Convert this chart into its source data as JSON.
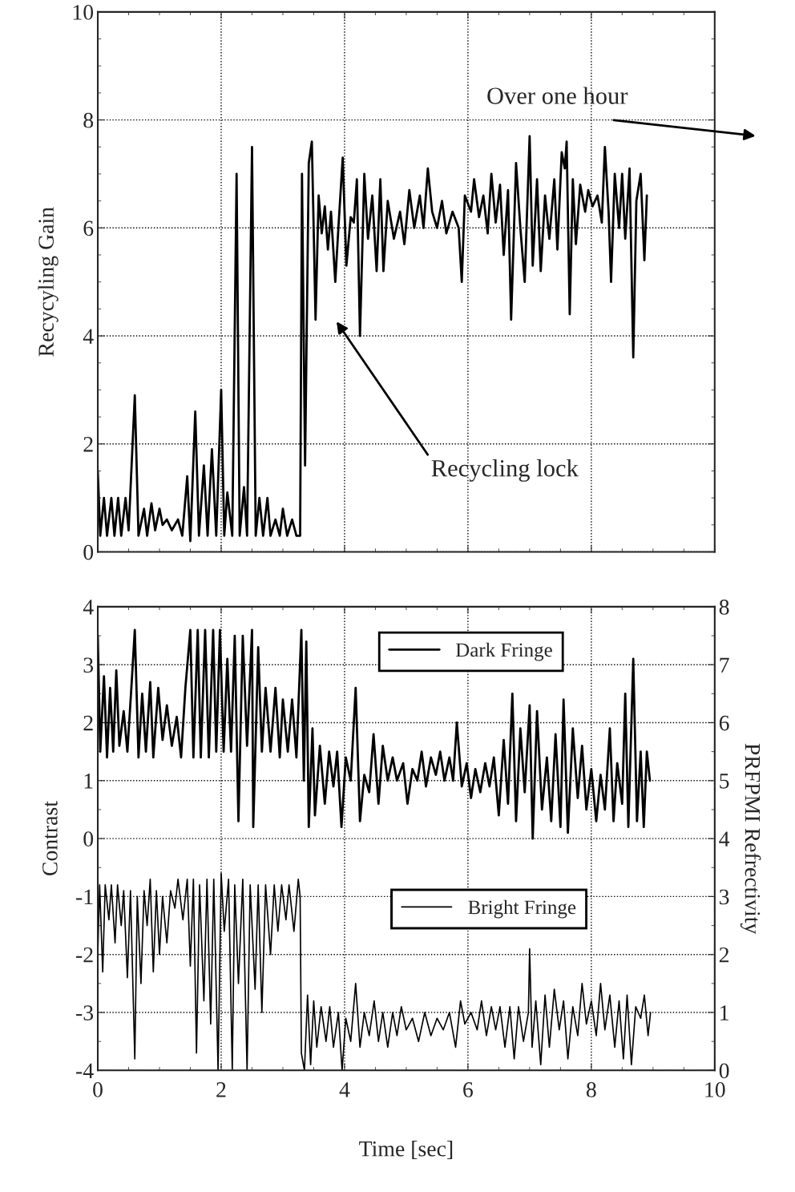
{
  "chart_data": [
    {
      "type": "line",
      "ylabel": "Recycyling Gain",
      "xlim": [
        0,
        10
      ],
      "xticks": [
        0,
        2,
        4,
        6,
        8,
        10
      ],
      "ylim": [
        0,
        10
      ],
      "yticks": [
        0,
        2,
        4,
        6,
        8,
        10
      ],
      "grid": true,
      "tick_labels": "y",
      "annotations": [
        "Over one hour",
        "Recycling lock"
      ],
      "series": [
        {
          "color": "#000000",
          "x": [
            0,
            0.04,
            0.1,
            0.15,
            0.22,
            0.27,
            0.33,
            0.38,
            0.45,
            0.5,
            0.6,
            0.66,
            0.75,
            0.8,
            0.87,
            0.93,
            1.0,
            1.05,
            1.12,
            1.2,
            1.3,
            1.37,
            1.45,
            1.5,
            1.58,
            1.64,
            1.72,
            1.78,
            1.85,
            1.92,
            2.0,
            2.05,
            2.1,
            2.18,
            2.25,
            2.3,
            2.37,
            2.42,
            2.5,
            2.56,
            2.62,
            2.68,
            2.75,
            2.8,
            2.88,
            2.95,
            3.0,
            3.07,
            3.15,
            3.22,
            3.28,
            3.31,
            3.36,
            3.42,
            3.47,
            3.53,
            3.58,
            3.63,
            3.68,
            3.73,
            3.78,
            3.85,
            3.9,
            3.97,
            4.03,
            4.1,
            4.15,
            4.2,
            4.25,
            4.32,
            4.38,
            4.45,
            4.52,
            4.58,
            4.63,
            4.7,
            4.8,
            4.9,
            4.97,
            5.05,
            5.13,
            5.22,
            5.28,
            5.35,
            5.42,
            5.5,
            5.58,
            5.65,
            5.75,
            5.85,
            5.9,
            5.95,
            6.05,
            6.1,
            6.18,
            6.25,
            6.32,
            6.38,
            6.45,
            6.52,
            6.58,
            6.65,
            6.7,
            6.78,
            6.85,
            6.92,
            7.0,
            7.05,
            7.12,
            7.18,
            7.25,
            7.32,
            7.4,
            7.45,
            7.52,
            7.57,
            7.6,
            7.65,
            7.7,
            7.75,
            7.82,
            7.9,
            7.95,
            8.02,
            8.1,
            8.17,
            8.22,
            8.28,
            8.32,
            8.38,
            8.45,
            8.5,
            8.55,
            8.62,
            8.68,
            8.73,
            8.8,
            8.86,
            8.9
          ],
          "values": [
            1.5,
            0.3,
            1.0,
            0.3,
            1.0,
            0.3,
            1.0,
            0.3,
            1.0,
            0.4,
            2.9,
            0.3,
            0.8,
            0.3,
            0.9,
            0.4,
            0.8,
            0.5,
            0.6,
            0.4,
            0.6,
            0.3,
            1.4,
            0.2,
            2.6,
            0.3,
            1.6,
            0.3,
            1.9,
            0.3,
            3.0,
            0.3,
            1.1,
            0.3,
            7.0,
            0.3,
            1.2,
            0.3,
            7.5,
            0.3,
            1.0,
            0.3,
            1.0,
            0.3,
            0.6,
            0.3,
            0.8,
            0.3,
            0.6,
            0.3,
            0.3,
            7.0,
            1.6,
            7.2,
            7.6,
            4.3,
            6.6,
            5.9,
            6.4,
            5.6,
            6.3,
            5.0,
            6.0,
            7.3,
            5.3,
            6.2,
            6.1,
            6.9,
            4.0,
            7.0,
            5.8,
            6.6,
            5.2,
            6.9,
            5.2,
            6.5,
            5.8,
            6.3,
            5.7,
            6.7,
            6.0,
            6.6,
            6.0,
            7.1,
            6.3,
            6.0,
            6.5,
            5.9,
            6.3,
            6.0,
            5.0,
            6.6,
            6.3,
            6.9,
            6.2,
            6.6,
            5.9,
            7.0,
            6.1,
            6.8,
            5.5,
            6.7,
            4.3,
            7.2,
            6.0,
            5.0,
            7.7,
            5.3,
            6.9,
            5.2,
            6.6,
            5.8,
            6.9,
            5.6,
            7.4,
            7.1,
            7.6,
            4.4,
            6.9,
            5.7,
            6.8,
            6.3,
            6.7,
            6.4,
            6.6,
            6.1,
            7.5,
            6.3,
            5.0,
            7.0,
            6.0,
            7.0,
            5.8,
            7.1,
            3.6,
            6.5,
            7.0,
            5.4,
            6.6
          ]
        }
      ]
    },
    {
      "type": "line",
      "xlabel": "Time [sec]",
      "ylabel": "Contrast",
      "y2label": "PRFPMI Refrectivity",
      "xlim": [
        0,
        10
      ],
      "xticks": [
        0,
        2,
        4,
        6,
        8,
        10
      ],
      "ylim": [
        -4,
        4
      ],
      "yticks": [
        -4,
        -3,
        -2,
        -1,
        0,
        1,
        2,
        3,
        4
      ],
      "y2lim": [
        0,
        8
      ],
      "y2ticks": [
        0,
        1,
        2,
        3,
        4,
        5,
        6,
        7,
        8
      ],
      "grid": true,
      "legend": "right",
      "series": [
        {
          "name": "Dark Fringe",
          "color": "#000000",
          "x": [
            0,
            0.04,
            0.1,
            0.15,
            0.2,
            0.25,
            0.3,
            0.35,
            0.42,
            0.48,
            0.55,
            0.6,
            0.66,
            0.72,
            0.78,
            0.85,
            0.9,
            0.98,
            1.05,
            1.12,
            1.2,
            1.28,
            1.35,
            1.42,
            1.5,
            1.55,
            1.62,
            1.67,
            1.74,
            1.8,
            1.87,
            1.92,
            1.98,
            2.04,
            2.1,
            2.16,
            2.22,
            2.28,
            2.35,
            2.42,
            2.5,
            2.52,
            2.6,
            2.66,
            2.72,
            2.8,
            2.88,
            2.95,
            3.0,
            3.08,
            3.15,
            3.22,
            3.3,
            3.34,
            3.38,
            3.42,
            3.48,
            3.52,
            3.6,
            3.68,
            3.75,
            3.82,
            3.88,
            3.95,
            4.02,
            4.1,
            4.18,
            4.25,
            4.32,
            4.4,
            4.47,
            4.55,
            4.62,
            4.7,
            4.78,
            4.85,
            4.95,
            5.02,
            5.1,
            5.18,
            5.25,
            5.32,
            5.4,
            5.48,
            5.55,
            5.62,
            5.7,
            5.76,
            5.82,
            5.9,
            5.98,
            6.05,
            6.12,
            6.2,
            6.28,
            6.35,
            6.42,
            6.5,
            6.58,
            6.65,
            6.72,
            6.78,
            6.85,
            6.92,
            7.0,
            7.05,
            7.12,
            7.2,
            7.28,
            7.35,
            7.42,
            7.5,
            7.55,
            7.62,
            7.7,
            7.78,
            7.85,
            7.92,
            8.0,
            8.08,
            8.15,
            8.22,
            8.3,
            8.36,
            8.42,
            8.5,
            8.55,
            8.6,
            8.68,
            8.74,
            8.8,
            8.85,
            8.9,
            8.95
          ],
          "values": [
            3.5,
            1.5,
            2.8,
            1.4,
            2.6,
            1.5,
            2.9,
            1.6,
            2.2,
            1.5,
            2.7,
            3.6,
            1.4,
            2.5,
            1.5,
            2.7,
            1.4,
            2.6,
            1.7,
            2.3,
            1.6,
            2.1,
            1.4,
            2.6,
            3.6,
            1.4,
            3.6,
            1.4,
            3.6,
            1.4,
            3.6,
            1.5,
            3.6,
            1.5,
            3.1,
            1.5,
            3.5,
            0.3,
            3.5,
            1.6,
            3.6,
            0.2,
            3.3,
            1.5,
            2.6,
            1.5,
            2.6,
            1.4,
            2.4,
            1.5,
            2.4,
            1.4,
            3.6,
            1.0,
            3.4,
            0.2,
            1.9,
            0.4,
            1.6,
            0.6,
            1.5,
            0.9,
            1.5,
            0.2,
            1.4,
            1.0,
            2.6,
            0.3,
            1.1,
            0.8,
            1.8,
            0.6,
            1.6,
            1.0,
            1.4,
            1.0,
            1.3,
            0.6,
            1.2,
            1.0,
            1.5,
            0.9,
            1.4,
            1.1,
            1.5,
            1.0,
            1.4,
            1.0,
            2.0,
            0.9,
            1.3,
            0.7,
            1.2,
            0.8,
            1.3,
            0.9,
            1.4,
            0.4,
            1.7,
            0.6,
            2.5,
            0.3,
            1.9,
            0.8,
            2.3,
            0.0,
            2.2,
            0.5,
            1.4,
            0.3,
            1.8,
            0.2,
            2.4,
            0.1,
            1.9,
            0.7,
            1.6,
            0.5,
            1.2,
            0.3,
            1.1,
            0.5,
            1.9,
            0.3,
            1.3,
            0.6,
            2.5,
            0.2,
            3.1,
            0.3,
            1.5,
            0.2,
            1.5,
            1.0
          ]
        },
        {
          "name": "Bright Fringe",
          "color": "#000000",
          "x": [
            0,
            0.03,
            0.08,
            0.12,
            0.18,
            0.22,
            0.28,
            0.32,
            0.38,
            0.42,
            0.48,
            0.53,
            0.6,
            0.64,
            0.7,
            0.75,
            0.8,
            0.85,
            0.9,
            0.95,
            1.0,
            1.05,
            1.12,
            1.18,
            1.25,
            1.3,
            1.38,
            1.45,
            1.5,
            1.55,
            1.6,
            1.65,
            1.72,
            1.77,
            1.83,
            1.88,
            1.95,
            2.0,
            2.05,
            2.12,
            2.18,
            2.22,
            2.28,
            2.35,
            2.42,
            2.47,
            2.55,
            2.6,
            2.66,
            2.72,
            2.8,
            2.86,
            2.92,
            2.98,
            3.05,
            3.1,
            3.18,
            3.25,
            3.28,
            3.3,
            3.35,
            3.4,
            3.45,
            3.5,
            3.55,
            3.62,
            3.7,
            3.76,
            3.82,
            3.9,
            3.96,
            4.02,
            4.1,
            4.18,
            4.25,
            4.32,
            4.4,
            4.48,
            4.55,
            4.62,
            4.7,
            4.78,
            4.85,
            4.92,
            5.0,
            5.1,
            5.2,
            5.3,
            5.4,
            5.5,
            5.6,
            5.7,
            5.8,
            5.88,
            5.95,
            6.05,
            6.15,
            6.22,
            6.3,
            6.38,
            6.45,
            6.52,
            6.6,
            6.68,
            6.75,
            6.82,
            6.9,
            6.98,
            7.0,
            7.04,
            7.1,
            7.18,
            7.25,
            7.32,
            7.4,
            7.48,
            7.55,
            7.62,
            7.7,
            7.78,
            7.85,
            7.92,
            8.0,
            8.08,
            8.15,
            8.22,
            8.3,
            8.38,
            8.45,
            8.52,
            8.58,
            8.65,
            8.72,
            8.8,
            8.86,
            8.92,
            8.96
          ],
          "values": [
            -2.0,
            -0.8,
            -2.3,
            -0.8,
            -1.4,
            -0.8,
            -1.8,
            -0.8,
            -1.5,
            -0.9,
            -2.4,
            -0.9,
            -3.8,
            -1.0,
            -2.5,
            -0.9,
            -1.5,
            -0.7,
            -2.3,
            -0.9,
            -2.0,
            -1.0,
            -1.8,
            -0.9,
            -1.2,
            -0.7,
            -1.4,
            -0.7,
            -2.2,
            -0.7,
            -3.7,
            -0.8,
            -2.8,
            -0.7,
            -3.2,
            -0.7,
            -4.0,
            -0.6,
            -1.6,
            -0.7,
            -4.0,
            -0.8,
            -2.5,
            -0.7,
            -4.0,
            -0.8,
            -2.6,
            -0.8,
            -3.0,
            -0.8,
            -2.0,
            -0.8,
            -1.6,
            -0.8,
            -1.4,
            -0.8,
            -1.6,
            -0.7,
            -1.0,
            -3.7,
            -4.0,
            -2.7,
            -3.9,
            -2.8,
            -3.6,
            -2.9,
            -3.5,
            -2.9,
            -3.6,
            -3.0,
            -4.0,
            -3.1,
            -3.5,
            -2.5,
            -3.6,
            -3.0,
            -3.4,
            -2.8,
            -3.5,
            -3.0,
            -3.6,
            -3.0,
            -3.4,
            -2.9,
            -3.3,
            -3.1,
            -3.5,
            -3.0,
            -3.4,
            -3.1,
            -3.3,
            -3.0,
            -3.6,
            -2.8,
            -3.2,
            -3.0,
            -3.3,
            -2.8,
            -3.4,
            -2.9,
            -3.3,
            -2.9,
            -3.6,
            -2.9,
            -3.8,
            -2.9,
            -3.5,
            -3.0,
            -1.9,
            -3.6,
            -2.8,
            -3.9,
            -2.7,
            -3.6,
            -2.6,
            -3.3,
            -2.8,
            -3.8,
            -2.9,
            -3.4,
            -2.5,
            -3.2,
            -2.8,
            -3.4,
            -2.5,
            -3.3,
            -2.7,
            -3.6,
            -2.8,
            -3.8,
            -2.7,
            -3.9,
            -2.9,
            -3.1,
            -2.7,
            -3.4,
            -3.0
          ]
        }
      ]
    }
  ]
}
